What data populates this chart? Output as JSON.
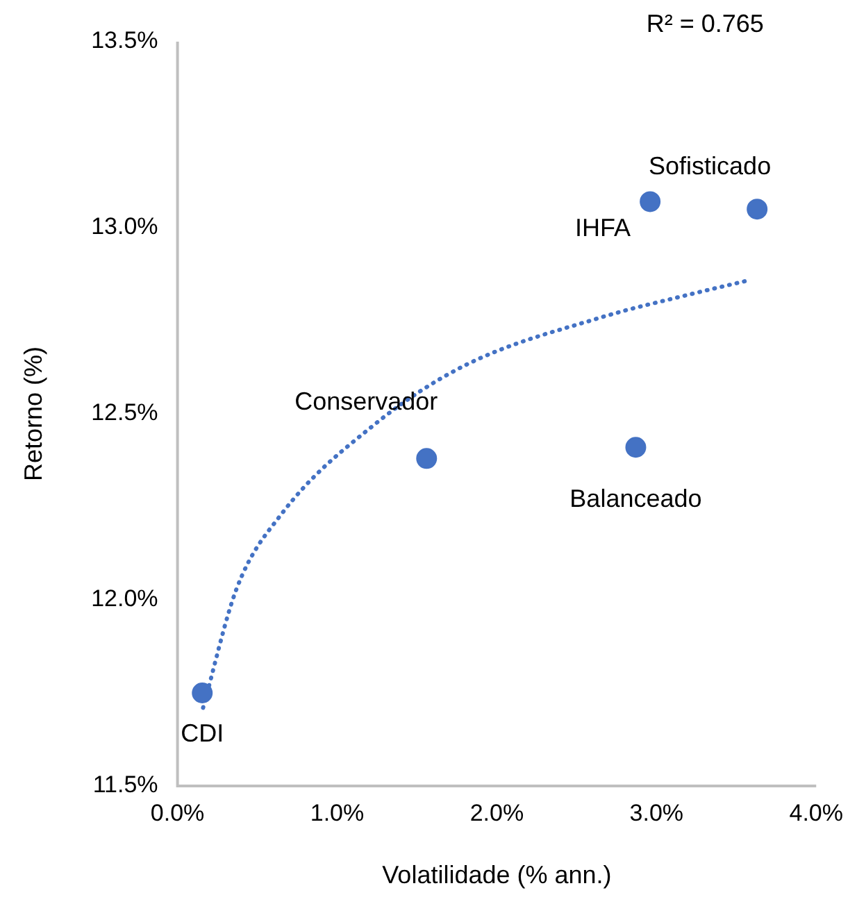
{
  "chart_data": {
    "type": "scatter",
    "xlabel": "Volatilidade (% ann.)",
    "ylabel": "Retorno (%)",
    "xlim": [
      0,
      4
    ],
    "xticks": [
      {
        "value": 0,
        "label": "0.0%"
      },
      {
        "value": 1,
        "label": "1.0%"
      },
      {
        "value": 2,
        "label": "2.0%"
      },
      {
        "value": 3,
        "label": "3.0%"
      },
      {
        "value": 4,
        "label": "4.0%"
      }
    ],
    "ylim": [
      11.5,
      13.5
    ],
    "yticks": [
      {
        "value": 11.5,
        "label": "11.5%"
      },
      {
        "value": 12,
        "label": "12.0%"
      },
      {
        "value": 12.5,
        "label": "12.5%"
      },
      {
        "value": 13,
        "label": "13.0%"
      },
      {
        "value": 13.5,
        "label": "13.5%"
      }
    ],
    "grid": false,
    "legend": false,
    "series": [
      {
        "color": "#4472c4",
        "marker": "circle",
        "x": [
          0.155,
          1.56,
          2.87,
          2.96,
          3.63
        ],
        "values": [
          11.75,
          12.38,
          12.41,
          13.07,
          13.05
        ]
      },
      {
        "type": "line",
        "color": "#4472c4",
        "line_style": "dotted",
        "marker": "none",
        "x": [
          0.16,
          0.37,
          0.65,
          1.23,
          1.8,
          2.66,
          3.2,
          3.59
        ],
        "values": [
          11.71,
          12.03,
          12.23,
          12.47,
          12.63,
          12.76,
          12.82,
          12.86
        ]
      }
    ],
    "annotations": [
      {
        "text": "CDI",
        "x": 0.155,
        "y": 11.75
      },
      {
        "text": "Conservador",
        "x": 1.56,
        "y": 12.38
      },
      {
        "text": "Balanceado",
        "x": 2.87,
        "y": 12.41
      },
      {
        "text": "IHFA",
        "x": 2.96,
        "y": 13.07
      },
      {
        "text": "Sofisticado",
        "x": 3.63,
        "y": 13.05
      },
      "R² = 0.765"
    ]
  }
}
